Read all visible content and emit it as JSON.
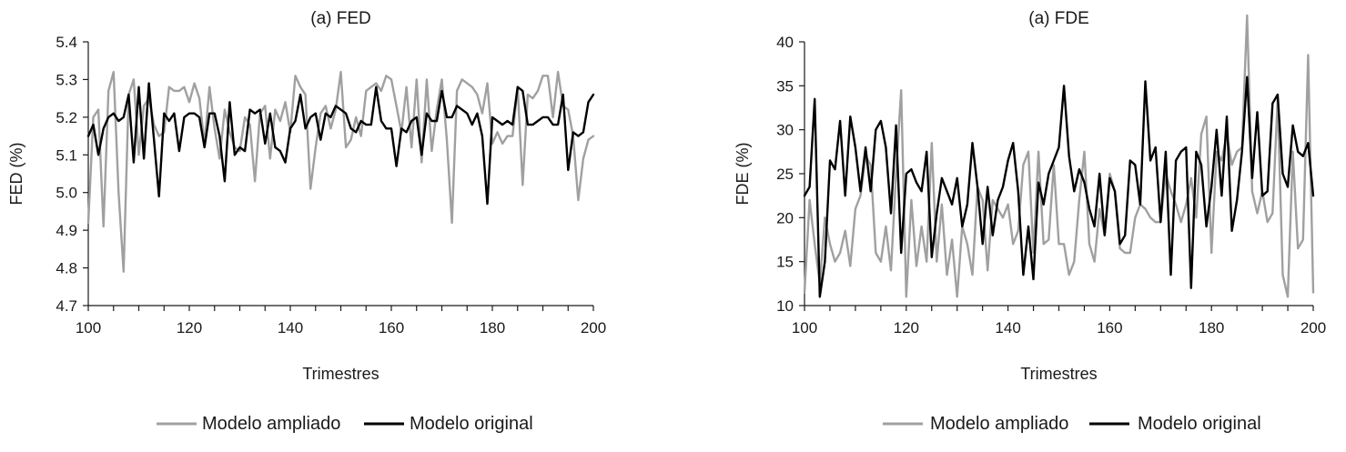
{
  "chart_data": [
    {
      "type": "line",
      "title": "(a) FED",
      "xlabel": "Trimestres",
      "ylabel": "FED (%)",
      "xlim": [
        100,
        200
      ],
      "ylim": [
        4.7,
        5.4
      ],
      "xticks": [
        100,
        120,
        140,
        160,
        180,
        200
      ],
      "yticks": [
        4.7,
        4.8,
        4.9,
        5.0,
        5.1,
        5.2,
        5.3,
        5.4
      ],
      "ytick_labels": [
        "4.7",
        "4.8",
        "4.9",
        "5.0",
        "5.1",
        "5.2",
        "5.3",
        "5.4"
      ],
      "legend_position": "bottom",
      "grid": false,
      "x": [
        100,
        101,
        102,
        103,
        104,
        105,
        106,
        107,
        108,
        109,
        110,
        111,
        112,
        113,
        114,
        115,
        116,
        117,
        118,
        119,
        120,
        121,
        122,
        123,
        124,
        125,
        126,
        127,
        128,
        129,
        130,
        131,
        132,
        133,
        134,
        135,
        136,
        137,
        138,
        139,
        140,
        141,
        142,
        143,
        144,
        145,
        146,
        147,
        148,
        149,
        150,
        151,
        152,
        153,
        154,
        155,
        156,
        157,
        158,
        159,
        160,
        161,
        162,
        163,
        164,
        165,
        166,
        167,
        168,
        169,
        170,
        171,
        172,
        173,
        174,
        175,
        176,
        177,
        178,
        179,
        180,
        181,
        182,
        183,
        184,
        185,
        186,
        187,
        188,
        189,
        190,
        191,
        192,
        193,
        194,
        195,
        196,
        197,
        198,
        199,
        200
      ],
      "series": [
        {
          "name": "Modelo ampliado",
          "color": "#a0a0a0",
          "values": [
            4.92,
            5.2,
            5.22,
            4.91,
            5.27,
            5.32,
            5.0,
            4.79,
            5.26,
            5.3,
            5.1,
            5.23,
            5.25,
            5.18,
            5.15,
            5.16,
            5.28,
            5.27,
            5.27,
            5.28,
            5.24,
            5.29,
            5.25,
            5.13,
            5.28,
            5.17,
            5.09,
            5.22,
            5.16,
            5.12,
            5.11,
            5.2,
            5.18,
            5.03,
            5.21,
            5.23,
            5.09,
            5.22,
            5.19,
            5.24,
            5.16,
            5.31,
            5.28,
            5.26,
            5.01,
            5.12,
            5.21,
            5.23,
            5.17,
            5.22,
            5.32,
            5.12,
            5.14,
            5.2,
            5.15,
            5.27,
            5.28,
            5.29,
            5.27,
            5.31,
            5.3,
            5.23,
            5.16,
            5.28,
            5.12,
            5.3,
            5.08,
            5.3,
            5.11,
            5.22,
            5.3,
            5.14,
            4.92,
            5.27,
            5.3,
            5.29,
            5.28,
            5.26,
            5.21,
            5.29,
            5.13,
            5.16,
            5.13,
            5.15,
            5.15,
            5.28,
            5.02,
            5.26,
            5.25,
            5.27,
            5.31,
            5.31,
            5.2,
            5.32,
            5.23,
            5.22,
            5.15,
            4.98,
            5.09,
            5.14,
            5.15
          ]
        },
        {
          "name": "Modelo original",
          "color": "#000000",
          "values": [
            5.15,
            5.18,
            5.1,
            5.17,
            5.2,
            5.21,
            5.19,
            5.2,
            5.26,
            5.08,
            5.28,
            5.09,
            5.29,
            5.14,
            4.99,
            5.21,
            5.19,
            5.21,
            5.11,
            5.2,
            5.21,
            5.21,
            5.2,
            5.12,
            5.21,
            5.21,
            5.15,
            5.03,
            5.24,
            5.1,
            5.12,
            5.11,
            5.22,
            5.21,
            5.22,
            5.13,
            5.21,
            5.12,
            5.11,
            5.08,
            5.17,
            5.19,
            5.26,
            5.17,
            5.2,
            5.21,
            5.14,
            5.21,
            5.2,
            5.23,
            5.22,
            5.21,
            5.17,
            5.16,
            5.19,
            5.18,
            5.18,
            5.28,
            5.19,
            5.17,
            5.17,
            5.07,
            5.17,
            5.16,
            5.19,
            5.2,
            5.1,
            5.21,
            5.19,
            5.19,
            5.27,
            5.2,
            5.2,
            5.23,
            5.22,
            5.21,
            5.18,
            5.21,
            5.15,
            4.97,
            5.2,
            5.19,
            5.18,
            5.19,
            5.18,
            5.28,
            5.27,
            5.18,
            5.18,
            5.19,
            5.2,
            5.2,
            5.18,
            5.18,
            5.26,
            5.06,
            5.16,
            5.15,
            5.16,
            5.24,
            5.26
          ]
        }
      ]
    },
    {
      "type": "line",
      "title": "(a) FDE",
      "xlabel": "Trimestres",
      "ylabel": "FDE (%)",
      "xlim": [
        100,
        200
      ],
      "ylim": [
        10,
        40
      ],
      "xticks": [
        100,
        120,
        140,
        160,
        180,
        200
      ],
      "yticks": [
        10,
        15,
        20,
        25,
        30,
        35,
        40
      ],
      "ytick_labels": [
        "10",
        "15",
        "20",
        "25",
        "30",
        "35",
        "40"
      ],
      "legend_position": "bottom",
      "grid": false,
      "x": [
        100,
        101,
        102,
        103,
        104,
        105,
        106,
        107,
        108,
        109,
        110,
        111,
        112,
        113,
        114,
        115,
        116,
        117,
        118,
        119,
        120,
        121,
        122,
        123,
        124,
        125,
        126,
        127,
        128,
        129,
        130,
        131,
        132,
        133,
        134,
        135,
        136,
        137,
        138,
        139,
        140,
        141,
        142,
        143,
        144,
        145,
        146,
        147,
        148,
        149,
        150,
        151,
        152,
        153,
        154,
        155,
        156,
        157,
        158,
        159,
        160,
        161,
        162,
        163,
        164,
        165,
        166,
        167,
        168,
        169,
        170,
        171,
        172,
        173,
        174,
        175,
        176,
        177,
        178,
        179,
        180,
        181,
        182,
        183,
        184,
        185,
        186,
        187,
        188,
        189,
        190,
        191,
        192,
        193,
        194,
        195,
        196,
        197,
        198,
        199,
        200
      ],
      "series": [
        {
          "name": "Modelo ampliado",
          "color": "#a0a0a0",
          "values": [
            11.5,
            22.0,
            17.0,
            12.5,
            20.0,
            17.0,
            15.0,
            16.0,
            18.5,
            14.5,
            21.0,
            22.5,
            27.0,
            26.0,
            16.0,
            15.0,
            19.0,
            14.0,
            25.0,
            34.5,
            11.0,
            22.0,
            14.5,
            19.0,
            15.0,
            28.5,
            15.0,
            21.5,
            13.5,
            17.5,
            11.0,
            19.0,
            17.0,
            13.5,
            23.5,
            22.0,
            14.0,
            22.0,
            21.0,
            20.0,
            21.5,
            17.0,
            18.5,
            26.0,
            27.5,
            16.0,
            27.5,
            17.0,
            17.5,
            26.0,
            17.0,
            17.0,
            13.5,
            15.0,
            22.0,
            27.5,
            17.0,
            15.0,
            21.0,
            18.0,
            25.0,
            23.0,
            16.5,
            16.0,
            16.0,
            20.0,
            21.5,
            21.0,
            20.0,
            19.5,
            19.5,
            25.0,
            23.0,
            21.5,
            19.5,
            21.5,
            24.5,
            20.0,
            29.5,
            31.5,
            16.0,
            27.5,
            26.5,
            29.5,
            26.0,
            27.5,
            28.0,
            43.0,
            23.0,
            20.5,
            23.0,
            19.5,
            20.5,
            33.5,
            13.5,
            11.0,
            27.5,
            16.5,
            17.5,
            38.5,
            11.5
          ]
        },
        {
          "name": "Modelo original",
          "color": "#000000",
          "values": [
            22.5,
            23.5,
            33.5,
            11.0,
            15.0,
            26.5,
            25.5,
            31.0,
            22.5,
            31.5,
            28.0,
            23.0,
            28.0,
            23.0,
            30.0,
            31.0,
            28.0,
            20.5,
            30.5,
            16.0,
            25.0,
            25.5,
            24.0,
            23.0,
            27.5,
            15.5,
            20.5,
            24.5,
            23.0,
            21.5,
            24.5,
            19.0,
            21.5,
            28.5,
            23.5,
            17.0,
            23.5,
            18.0,
            22.0,
            23.5,
            26.5,
            28.5,
            23.0,
            13.5,
            19.0,
            13.0,
            24.0,
            21.5,
            25.0,
            26.5,
            28.0,
            35.0,
            27.0,
            23.0,
            25.5,
            24.0,
            21.0,
            19.0,
            25.0,
            18.0,
            24.5,
            23.0,
            17.0,
            18.0,
            26.5,
            26.0,
            21.5,
            35.5,
            26.5,
            28.0,
            19.5,
            27.5,
            13.5,
            26.5,
            27.5,
            28.0,
            12.0,
            27.5,
            26.0,
            19.0,
            23.5,
            30.0,
            22.5,
            31.5,
            18.5,
            22.0,
            27.5,
            36.0,
            24.5,
            32.0,
            22.5,
            23.0,
            33.0,
            34.0,
            25.0,
            23.5,
            30.5,
            27.5,
            27.0,
            28.5,
            22.5
          ]
        }
      ]
    }
  ]
}
